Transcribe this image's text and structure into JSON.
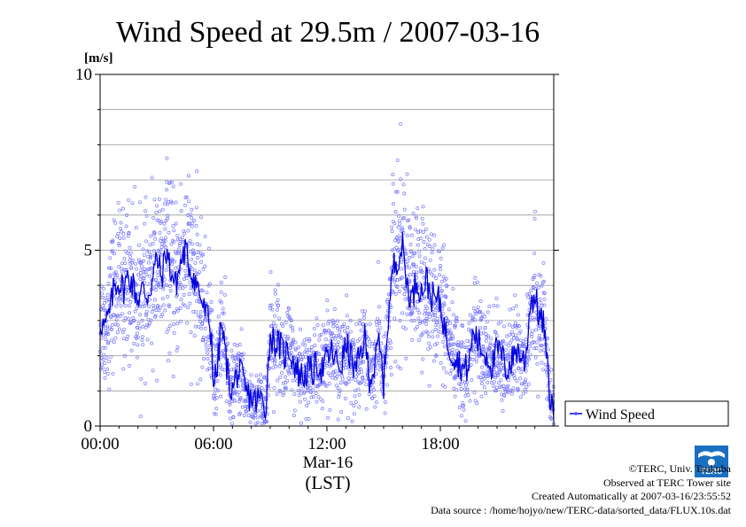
{
  "chart_data": {
    "type": "scatter",
    "title": "Wind Speed at 29.5m / 2007-03-16",
    "ylabel": "[m/s]",
    "xlabel": "Mar-16",
    "xlabel2": "(LST)",
    "ylim": [
      0,
      10
    ],
    "xlim_hours": [
      0,
      24
    ],
    "y_ticks": [
      {
        "value": 0,
        "label": "0"
      },
      {
        "value": 5,
        "label": "5"
      },
      {
        "value": 10,
        "label": "10"
      }
    ],
    "x_ticks": [
      {
        "hour": 0,
        "label": "00:00"
      },
      {
        "hour": 6,
        "label": "06:00"
      },
      {
        "hour": 12,
        "label": "12:00"
      },
      {
        "hour": 18,
        "label": "18:00"
      }
    ],
    "grid": "horizontal",
    "legend": {
      "position": "right",
      "entries": [
        {
          "label": "Wind Speed"
        }
      ]
    },
    "colors": {
      "line": "#0000dd",
      "points": "#7777ff",
      "grid": "#999999"
    },
    "series": [
      {
        "name": "Wind Speed",
        "hours": [
          0.0,
          0.25,
          0.5,
          0.75,
          1.0,
          1.25,
          1.5,
          1.75,
          2.0,
          2.25,
          2.5,
          2.75,
          3.0,
          3.25,
          3.5,
          3.75,
          4.0,
          4.25,
          4.5,
          4.75,
          5.0,
          5.25,
          5.5,
          5.75,
          5.9,
          6.0,
          6.2,
          6.4,
          6.6,
          6.8,
          7.0,
          7.25,
          7.5,
          7.75,
          8.0,
          8.25,
          8.5,
          8.75,
          9.0,
          9.2,
          9.5,
          9.75,
          10.0,
          10.25,
          10.5,
          10.75,
          11.0,
          11.25,
          11.5,
          11.75,
          12.0,
          12.25,
          12.5,
          12.75,
          13.0,
          13.25,
          13.5,
          13.75,
          14.0,
          14.25,
          14.5,
          14.75,
          15.0,
          15.2,
          15.5,
          15.75,
          16.0,
          16.25,
          16.5,
          16.75,
          17.0,
          17.25,
          17.5,
          17.75,
          18.0,
          18.25,
          18.5,
          18.75,
          19.0,
          19.25,
          19.5,
          19.75,
          20.0,
          20.25,
          20.5,
          20.75,
          21.0,
          21.25,
          21.5,
          21.75,
          22.0,
          22.25,
          22.5,
          22.75,
          23.0,
          23.25,
          23.5,
          23.75,
          24.0
        ],
        "values": [
          3.0,
          2.8,
          3.2,
          4.0,
          4.1,
          3.9,
          4.3,
          4.0,
          3.6,
          3.9,
          3.7,
          4.1,
          4.8,
          4.2,
          5.0,
          4.4,
          4.0,
          4.6,
          5.0,
          4.5,
          4.2,
          3.8,
          3.3,
          3.0,
          2.5,
          1.2,
          1.6,
          2.9,
          2.2,
          1.3,
          1.0,
          1.5,
          1.4,
          0.9,
          0.8,
          0.7,
          0.8,
          0.5,
          2.6,
          2.4,
          2.3,
          2.0,
          2.2,
          1.8,
          1.5,
          1.4,
          1.6,
          1.5,
          1.8,
          1.6,
          1.9,
          2.1,
          1.8,
          1.7,
          2.3,
          2.0,
          1.5,
          2.0,
          2.5,
          1.4,
          1.6,
          2.4,
          1.2,
          2.8,
          4.5,
          4.8,
          5.1,
          4.0,
          3.6,
          4.2,
          3.8,
          4.2,
          3.7,
          3.6,
          3.5,
          2.7,
          2.2,
          2.0,
          1.8,
          1.6,
          1.7,
          2.7,
          2.4,
          2.1,
          2.0,
          1.7,
          2.2,
          2.0,
          1.6,
          1.8,
          2.2,
          2.0,
          1.8,
          3.5,
          3.7,
          3.1,
          2.8,
          1.0,
          0.3
        ]
      }
    ]
  },
  "footer": {
    "copyright": "©TERC, Univ. Tsukuba",
    "site": "Observed at TERC Tower site",
    "created": "Created Automatically at 2007-03-16/23:55:52",
    "source": "Data source : /home/hojyo/new/TERC-data/sorted_data/FLUX.10s.dat"
  },
  "logo": {
    "text": "TERC",
    "icon": "terc-logo-icon",
    "color": "#1a6fc0"
  }
}
